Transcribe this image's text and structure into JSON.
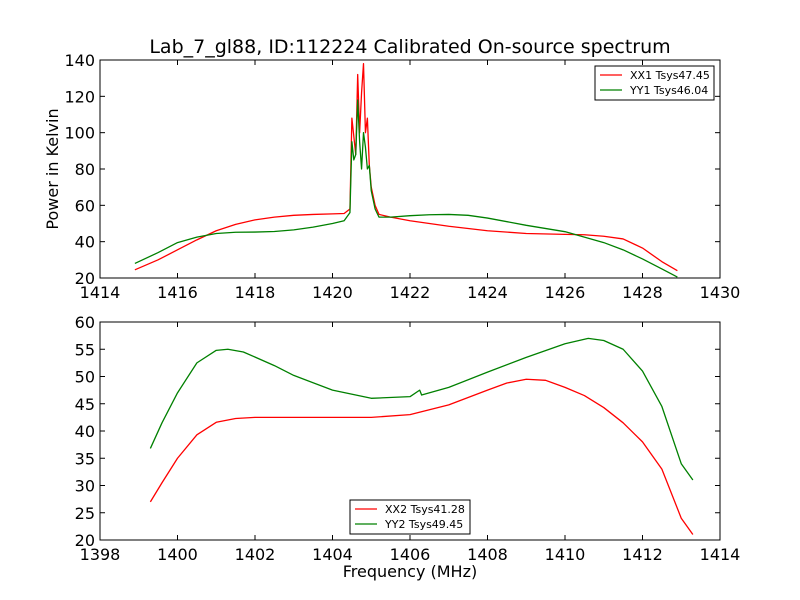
{
  "figure": {
    "title": "Lab_7_gl88, ID:112224 Calibrated On-source spectrum"
  },
  "chart_data": [
    {
      "type": "line",
      "title": "Lab_7_gl88, ID:112224 Calibrated On-source spectrum",
      "xlabel": "",
      "ylabel": "Power in Kelvin",
      "xlim": [
        1414,
        1430
      ],
      "ylim": [
        20,
        140
      ],
      "xticks": [
        1414,
        1416,
        1418,
        1420,
        1422,
        1424,
        1426,
        1428,
        1430
      ],
      "yticks": [
        20,
        40,
        60,
        80,
        100,
        120,
        140
      ],
      "legend": "top-right",
      "grid": false,
      "series": [
        {
          "name": "XX1 Tsys47.45",
          "color": "#ff0000",
          "points": [
            [
              1414.9,
              24.5
            ],
            [
              1415.5,
              30
            ],
            [
              1416,
              35.5
            ],
            [
              1416.5,
              41
            ],
            [
              1417,
              46
            ],
            [
              1417.5,
              49.5
            ],
            [
              1418,
              52
            ],
            [
              1418.5,
              53.5
            ],
            [
              1419,
              54.5
            ],
            [
              1419.5,
              55
            ],
            [
              1420,
              55.3
            ],
            [
              1420.3,
              55.5
            ],
            [
              1420.45,
              58
            ],
            [
              1420.5,
              108
            ],
            [
              1420.55,
              98
            ],
            [
              1420.6,
              88
            ],
            [
              1420.65,
              132
            ],
            [
              1420.7,
              100
            ],
            [
              1420.75,
              122
            ],
            [
              1420.8,
              138
            ],
            [
              1420.85,
              100
            ],
            [
              1420.9,
              108
            ],
            [
              1420.95,
              82
            ],
            [
              1421,
              70
            ],
            [
              1421.1,
              60
            ],
            [
              1421.2,
              55
            ],
            [
              1421.5,
              53.5
            ],
            [
              1422,
              51.5
            ],
            [
              1423,
              48.5
            ],
            [
              1424,
              46
            ],
            [
              1425,
              44.5
            ],
            [
              1426,
              44
            ],
            [
              1426.5,
              43.8
            ],
            [
              1427,
              43
            ],
            [
              1427.5,
              41.5
            ],
            [
              1428,
              36.5
            ],
            [
              1428.5,
              29
            ],
            [
              1428.9,
              24
            ]
          ]
        },
        {
          "name": "YY1 Tsys46.04",
          "color": "#008000",
          "points": [
            [
              1414.9,
              28
            ],
            [
              1415.5,
              34
            ],
            [
              1416,
              39.5
            ],
            [
              1416.5,
              42.5
            ],
            [
              1417,
              44.5
            ],
            [
              1417.5,
              45.2
            ],
            [
              1418,
              45.3
            ],
            [
              1418.5,
              45.6
            ],
            [
              1419,
              46.5
            ],
            [
              1419.5,
              48
            ],
            [
              1420,
              50
            ],
            [
              1420.3,
              51.5
            ],
            [
              1420.45,
              56
            ],
            [
              1420.5,
              95
            ],
            [
              1420.55,
              85
            ],
            [
              1420.6,
              88
            ],
            [
              1420.65,
              118
            ],
            [
              1420.7,
              95
            ],
            [
              1420.75,
              80
            ],
            [
              1420.8,
              100
            ],
            [
              1420.85,
              92
            ],
            [
              1420.9,
              80
            ],
            [
              1420.95,
              82
            ],
            [
              1421,
              68
            ],
            [
              1421.1,
              58
            ],
            [
              1421.2,
              53.5
            ],
            [
              1421.5,
              53.5
            ],
            [
              1422,
              54.3
            ],
            [
              1422.5,
              54.8
            ],
            [
              1423,
              55
            ],
            [
              1423.5,
              54.5
            ],
            [
              1424,
              53
            ],
            [
              1425,
              49
            ],
            [
              1426,
              45.5
            ],
            [
              1426.5,
              42.5
            ],
            [
              1427,
              39.5
            ],
            [
              1427.5,
              35.5
            ],
            [
              1428,
              30.5
            ],
            [
              1428.5,
              25
            ],
            [
              1428.9,
              20.5
            ]
          ]
        }
      ]
    },
    {
      "type": "line",
      "title": "",
      "xlabel": "Frequency (MHz)",
      "ylabel": "",
      "xlim": [
        1398,
        1414
      ],
      "ylim": [
        20,
        60
      ],
      "xticks": [
        1398,
        1400,
        1402,
        1404,
        1406,
        1408,
        1410,
        1412,
        1414
      ],
      "yticks": [
        20,
        25,
        30,
        35,
        40,
        45,
        50,
        55,
        60
      ],
      "legend": "bottom-center",
      "grid": false,
      "series": [
        {
          "name": "XX2 Tsys41.28",
          "color": "#ff0000",
          "points": [
            [
              1399.3,
              27
            ],
            [
              1399.6,
              30.5
            ],
            [
              1400,
              35
            ],
            [
              1400.5,
              39.3
            ],
            [
              1401,
              41.6
            ],
            [
              1401.5,
              42.3
            ],
            [
              1402,
              42.5
            ],
            [
              1403,
              42.5
            ],
            [
              1404,
              42.5
            ],
            [
              1405,
              42.5
            ],
            [
              1406,
              43
            ],
            [
              1407,
              44.8
            ],
            [
              1408,
              47.5
            ],
            [
              1408.5,
              48.8
            ],
            [
              1409,
              49.5
            ],
            [
              1409.5,
              49.3
            ],
            [
              1410,
              48
            ],
            [
              1410.5,
              46.5
            ],
            [
              1411,
              44.3
            ],
            [
              1411.5,
              41.5
            ],
            [
              1412,
              38
            ],
            [
              1412.5,
              33
            ],
            [
              1413,
              24
            ],
            [
              1413.3,
              21
            ]
          ]
        },
        {
          "name": "YY2 Tsys49.45",
          "color": "#008000",
          "points": [
            [
              1399.3,
              36.8
            ],
            [
              1399.6,
              41.5
            ],
            [
              1400,
              47
            ],
            [
              1400.5,
              52.5
            ],
            [
              1401,
              54.8
            ],
            [
              1401.3,
              55
            ],
            [
              1401.7,
              54.5
            ],
            [
              1402.5,
              52
            ],
            [
              1403,
              50.2
            ],
            [
              1404,
              47.5
            ],
            [
              1405,
              46
            ],
            [
              1406,
              46.3
            ],
            [
              1406.25,
              47.5
            ],
            [
              1406.3,
              46.6
            ],
            [
              1407,
              48
            ],
            [
              1408,
              50.8
            ],
            [
              1409,
              53.5
            ],
            [
              1410,
              56
            ],
            [
              1410.6,
              57
            ],
            [
              1411,
              56.6
            ],
            [
              1411.5,
              55
            ],
            [
              1412,
              51
            ],
            [
              1412.5,
              44.5
            ],
            [
              1413,
              34
            ],
            [
              1413.3,
              31
            ]
          ]
        }
      ]
    }
  ]
}
